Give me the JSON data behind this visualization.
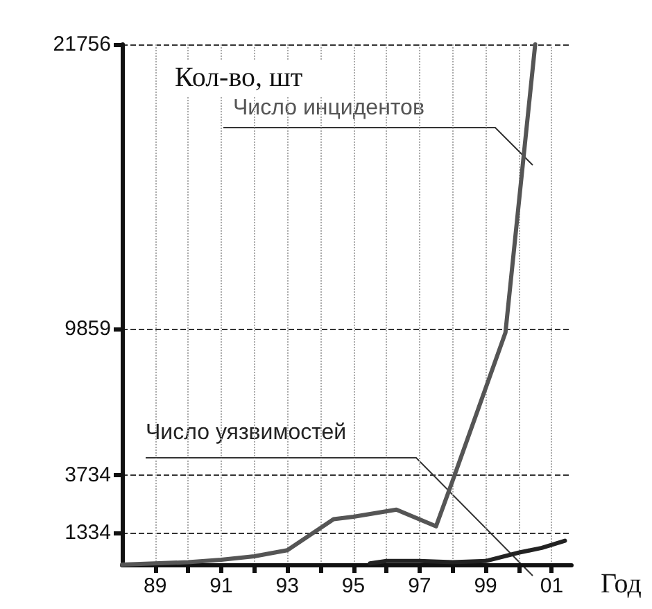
{
  "chart_data": {
    "type": "line",
    "ylabel": "Кол-во, шт",
    "xlabel": "Год",
    "xlim": [
      1988,
      2001.6
    ],
    "xticks": [
      {
        "value": 1989,
        "label": "89"
      },
      {
        "value": 1990,
        "label": null
      },
      {
        "value": 1991,
        "label": "91"
      },
      {
        "value": 1992,
        "label": null
      },
      {
        "value": 1993,
        "label": "93"
      },
      {
        "value": 1994,
        "label": null
      },
      {
        "value": 1995,
        "label": "95"
      },
      {
        "value": 1996,
        "label": null
      },
      {
        "value": 1997,
        "label": "97"
      },
      {
        "value": 1998,
        "label": null
      },
      {
        "value": 1999,
        "label": "99"
      },
      {
        "value": 2000,
        "label": null
      },
      {
        "value": 2001,
        "label": "01"
      }
    ],
    "ylim": [
      0,
      21756
    ],
    "yticks": [
      1334,
      3734,
      9859,
      21756
    ],
    "grid": true,
    "line_style": "solid",
    "marker": "none",
    "series": [
      {
        "name": "Число инцидентов",
        "color": "#555555",
        "x": [
          1988,
          1990,
          1991,
          1992,
          1993,
          1994.4,
          1995,
          1996.3,
          1997.5,
          1998,
          1999.6,
          2000.5
        ],
        "values": [
          0,
          100,
          200,
          350,
          600,
          1900,
          2000,
          2300,
          1600,
          3500,
          9700,
          21756
        ]
      },
      {
        "name": "Число уязвимостей",
        "color": "#222222",
        "x": [
          1995.5,
          1996,
          1997,
          1998,
          1999,
          2000,
          2000.7,
          2001.4
        ],
        "values": [
          50,
          150,
          150,
          100,
          150,
          500,
          700,
          1000
        ]
      }
    ]
  }
}
